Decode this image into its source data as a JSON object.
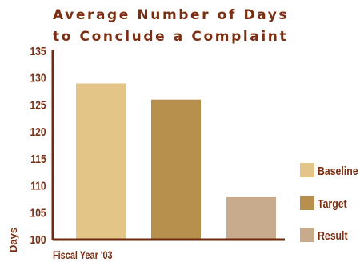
{
  "chart_data": {
    "type": "bar",
    "title_lines": [
      "Average Number of Days",
      "to Conclude a Complaint"
    ],
    "xlabel": "Fiscal Year '03",
    "ylabel": "Days",
    "categories": [
      "Fiscal Year '03"
    ],
    "series": [
      {
        "name": "Baseline",
        "values": [
          129
        ],
        "color": "#e2c587"
      },
      {
        "name": "Target",
        "values": [
          126
        ],
        "color": "#b8904e"
      },
      {
        "name": "Result",
        "values": [
          108
        ],
        "color": "#c8ab8c"
      }
    ],
    "ylim": [
      100,
      135
    ],
    "yticks": [
      100,
      105,
      110,
      115,
      120,
      125,
      130,
      135
    ],
    "grid": false,
    "legend_position": "right",
    "axis_color": "#6e2a12",
    "text_color": "#7a2e12"
  }
}
